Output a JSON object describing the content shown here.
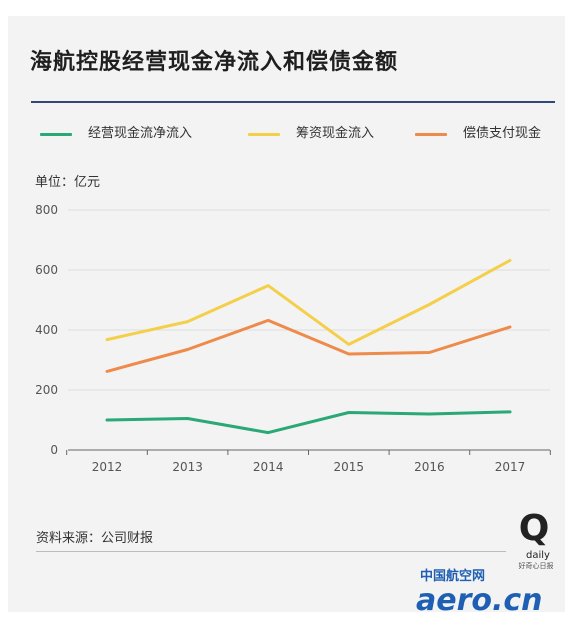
{
  "title": "海航控股经营现金净流入和偿债金额",
  "unit_label": "单位：亿元",
  "source_label": "资料来源：公司财报",
  "colors": {
    "card_bg": "#f3f3f3",
    "title_rule": "#2f4a7a",
    "grid": "#dcdcdc",
    "axis": "#666666",
    "tick_text": "#555555"
  },
  "logos": {
    "daily_mark": "Q",
    "daily_word": "daily",
    "daily_tagline": "好奇心日报",
    "site_cn": "中国航空网",
    "site_domain": "aero.cn"
  },
  "chart_data": {
    "type": "line",
    "title": "海航控股经营现金净流入和偿债金额",
    "xlabel": "",
    "ylabel": "",
    "categories": [
      "2012",
      "2013",
      "2014",
      "2015",
      "2016",
      "2017"
    ],
    "ylim": [
      0,
      800
    ],
    "yticks": [
      0,
      200,
      400,
      600,
      800
    ],
    "grid": true,
    "legend_position": "top",
    "series": [
      {
        "name": "经营现金流净流入",
        "color": "#2aa876",
        "values": [
          100,
          105,
          58,
          125,
          120,
          127
        ]
      },
      {
        "name": "筹资现金流入",
        "color": "#f4cf4a",
        "values": [
          368,
          428,
          548,
          352,
          485,
          632
        ]
      },
      {
        "name": "偿债支付现金",
        "color": "#ee8a4a",
        "values": [
          262,
          335,
          432,
          320,
          325,
          410
        ]
      }
    ]
  }
}
